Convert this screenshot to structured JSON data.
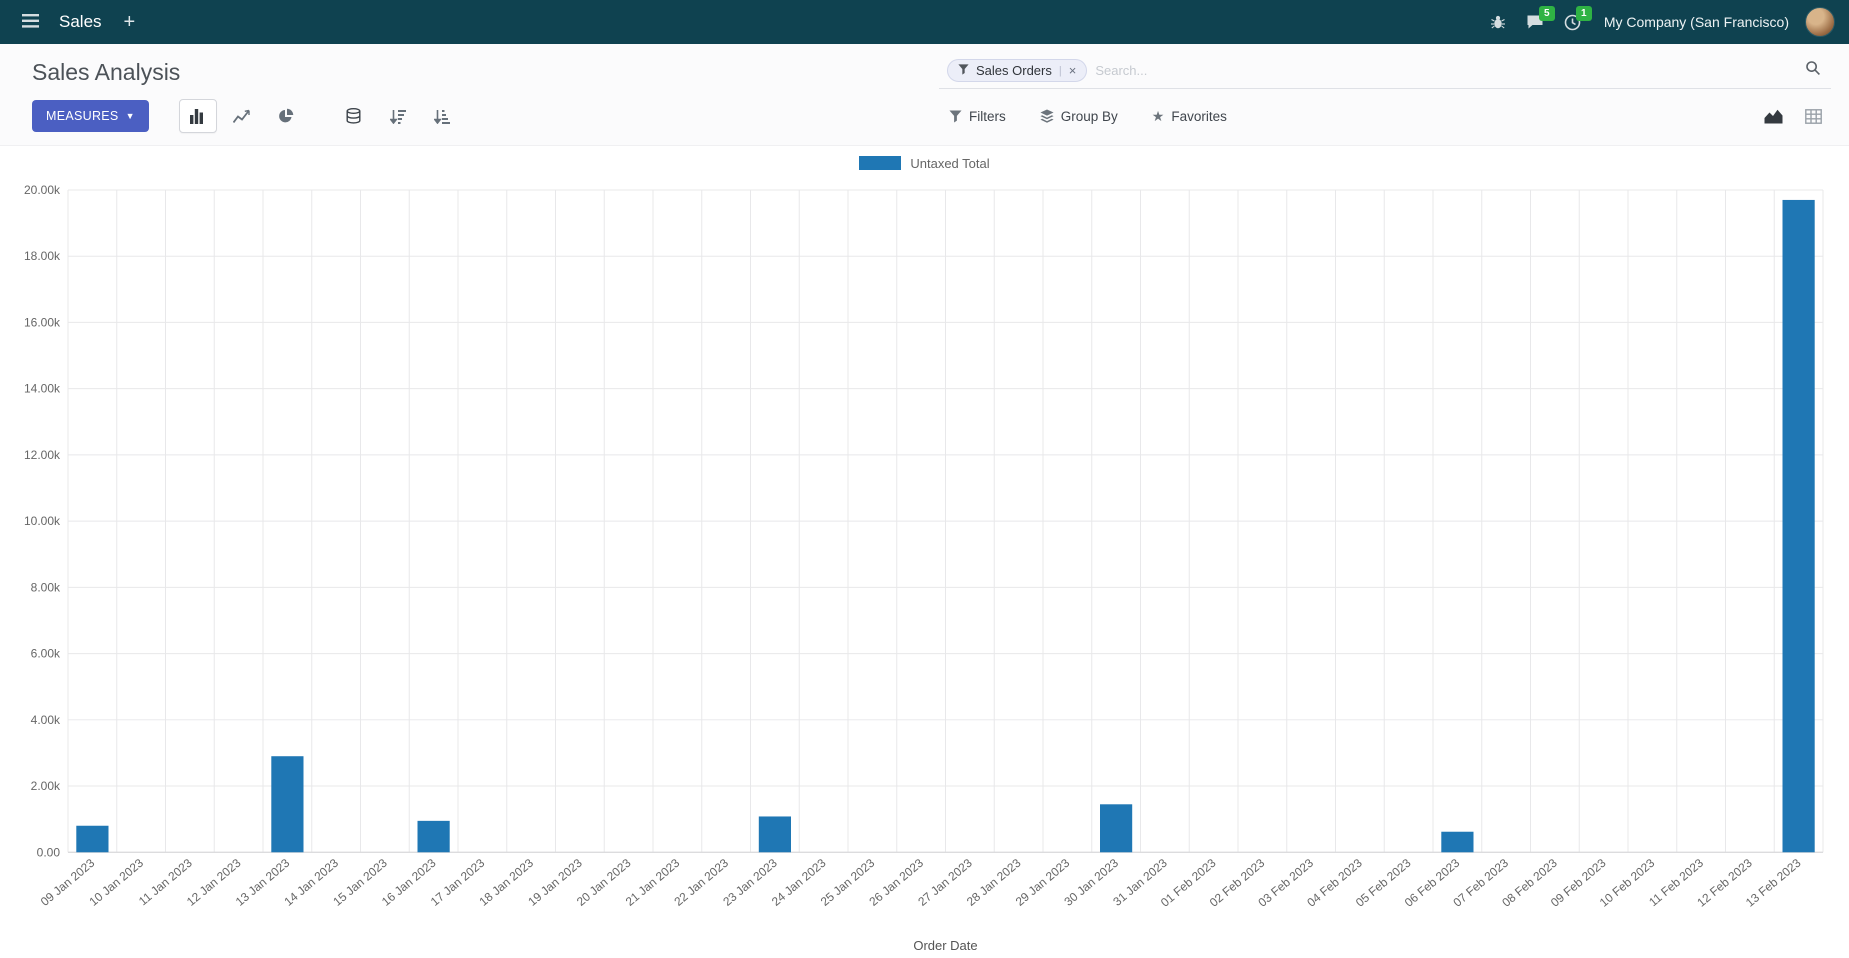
{
  "colors": {
    "navbar_bg": "#0f4250",
    "primary_button": "#4b5fc2",
    "badge_green": "#2fb344",
    "bar_color": "#1f77b4"
  },
  "navbar": {
    "app_name": "Sales",
    "plus_label": "+",
    "messages_badge": "5",
    "activities_badge": "1",
    "company": "My Company (San Francisco)"
  },
  "control_panel": {
    "title": "Sales Analysis",
    "search": {
      "facet_label": "Sales Orders",
      "facet_remove": "×",
      "placeholder": "Search..."
    },
    "measures_label": "MEASURES",
    "filters_label": "Filters",
    "group_by_label": "Group By",
    "favorites_label": "Favorites",
    "favorites_star": "★"
  },
  "chart_data": {
    "type": "bar",
    "title": "",
    "legend": [
      "Untaxed Total"
    ],
    "legend_position": "top-center",
    "series_color": "#1f77b4",
    "grid": true,
    "xlabel": "Order Date",
    "ylabel": "",
    "ylim": [
      0,
      20000
    ],
    "yticks": [
      0,
      2000,
      4000,
      6000,
      8000,
      10000,
      12000,
      14000,
      16000,
      18000,
      20000
    ],
    "ytick_labels": [
      "0.00",
      "2.00k",
      "4.00k",
      "6.00k",
      "8.00k",
      "10.00k",
      "12.00k",
      "14.00k",
      "16.00k",
      "18.00k",
      "20.00k"
    ],
    "categories": [
      "09 Jan 2023",
      "10 Jan 2023",
      "11 Jan 2023",
      "12 Jan 2023",
      "13 Jan 2023",
      "14 Jan 2023",
      "15 Jan 2023",
      "16 Jan 2023",
      "17 Jan 2023",
      "18 Jan 2023",
      "19 Jan 2023",
      "20 Jan 2023",
      "21 Jan 2023",
      "22 Jan 2023",
      "23 Jan 2023",
      "24 Jan 2023",
      "25 Jan 2023",
      "26 Jan 2023",
      "27 Jan 2023",
      "28 Jan 2023",
      "29 Jan 2023",
      "30 Jan 2023",
      "31 Jan 2023",
      "01 Feb 2023",
      "02 Feb 2023",
      "03 Feb 2023",
      "04 Feb 2023",
      "05 Feb 2023",
      "06 Feb 2023",
      "07 Feb 2023",
      "08 Feb 2023",
      "09 Feb 2023",
      "10 Feb 2023",
      "11 Feb 2023",
      "12 Feb 2023",
      "13 Feb 2023"
    ],
    "values": [
      800,
      0,
      0,
      0,
      2900,
      0,
      0,
      950,
      0,
      0,
      0,
      0,
      0,
      0,
      1080,
      0,
      0,
      0,
      0,
      0,
      0,
      1450,
      0,
      0,
      0,
      0,
      0,
      0,
      620,
      0,
      0,
      0,
      0,
      0,
      0,
      19700
    ]
  }
}
